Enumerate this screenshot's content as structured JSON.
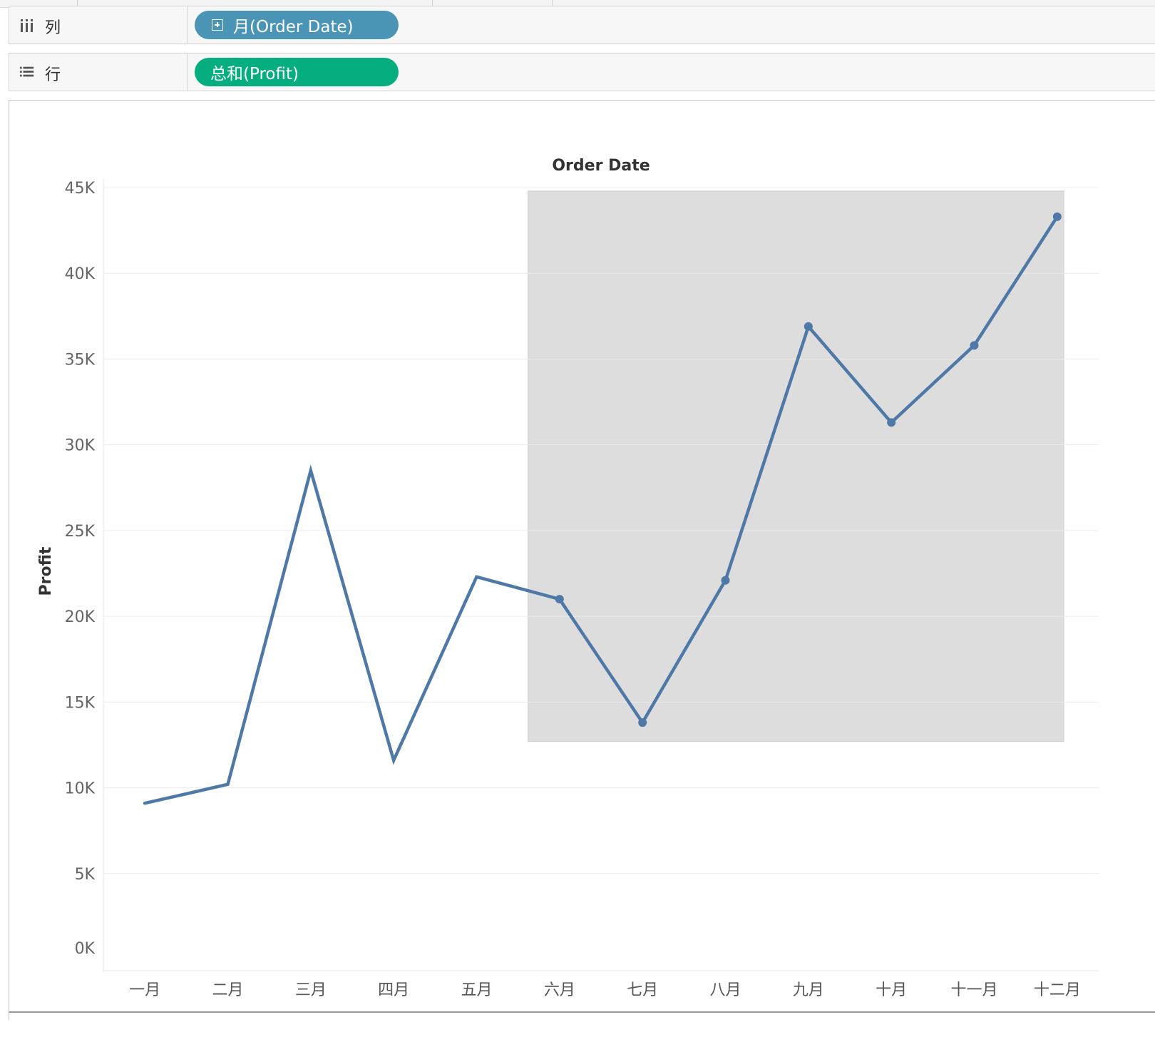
{
  "shelves": {
    "columns": {
      "label": "列",
      "icon": "columns-icon",
      "pill": "月(Order Date)",
      "pill_color": "#4a94b6",
      "pill_icon": "expand-plus-icon"
    },
    "rows": {
      "label": "行",
      "icon": "rows-icon",
      "pill": "总和(Profit)",
      "pill_color": "#05ad7f"
    }
  },
  "chart_data": {
    "type": "line",
    "title": "Order Date",
    "xlabel": "",
    "ylabel": "Profit",
    "categories": [
      "一月",
      "二月",
      "三月",
      "四月",
      "五月",
      "六月",
      "七月",
      "八月",
      "九月",
      "十月",
      "十一月",
      "十二月"
    ],
    "series": [
      {
        "values": [
          9100,
          10200,
          28500,
          11600,
          22300,
          21000,
          13800,
          22100,
          36900,
          31300,
          35800,
          43300
        ],
        "color": "#4e79a7"
      }
    ],
    "yticks": [
      "0K",
      "5K",
      "10K",
      "15K",
      "20K",
      "25K",
      "30K",
      "35K",
      "40K",
      "45K"
    ],
    "ylim": [
      0,
      45000
    ],
    "grid": true,
    "highlighted_points": [
      "六月",
      "七月",
      "八月",
      "九月",
      "十月",
      "十一月",
      "十二月"
    ],
    "selection_region": {
      "from": "六月",
      "to": "十二月"
    }
  }
}
